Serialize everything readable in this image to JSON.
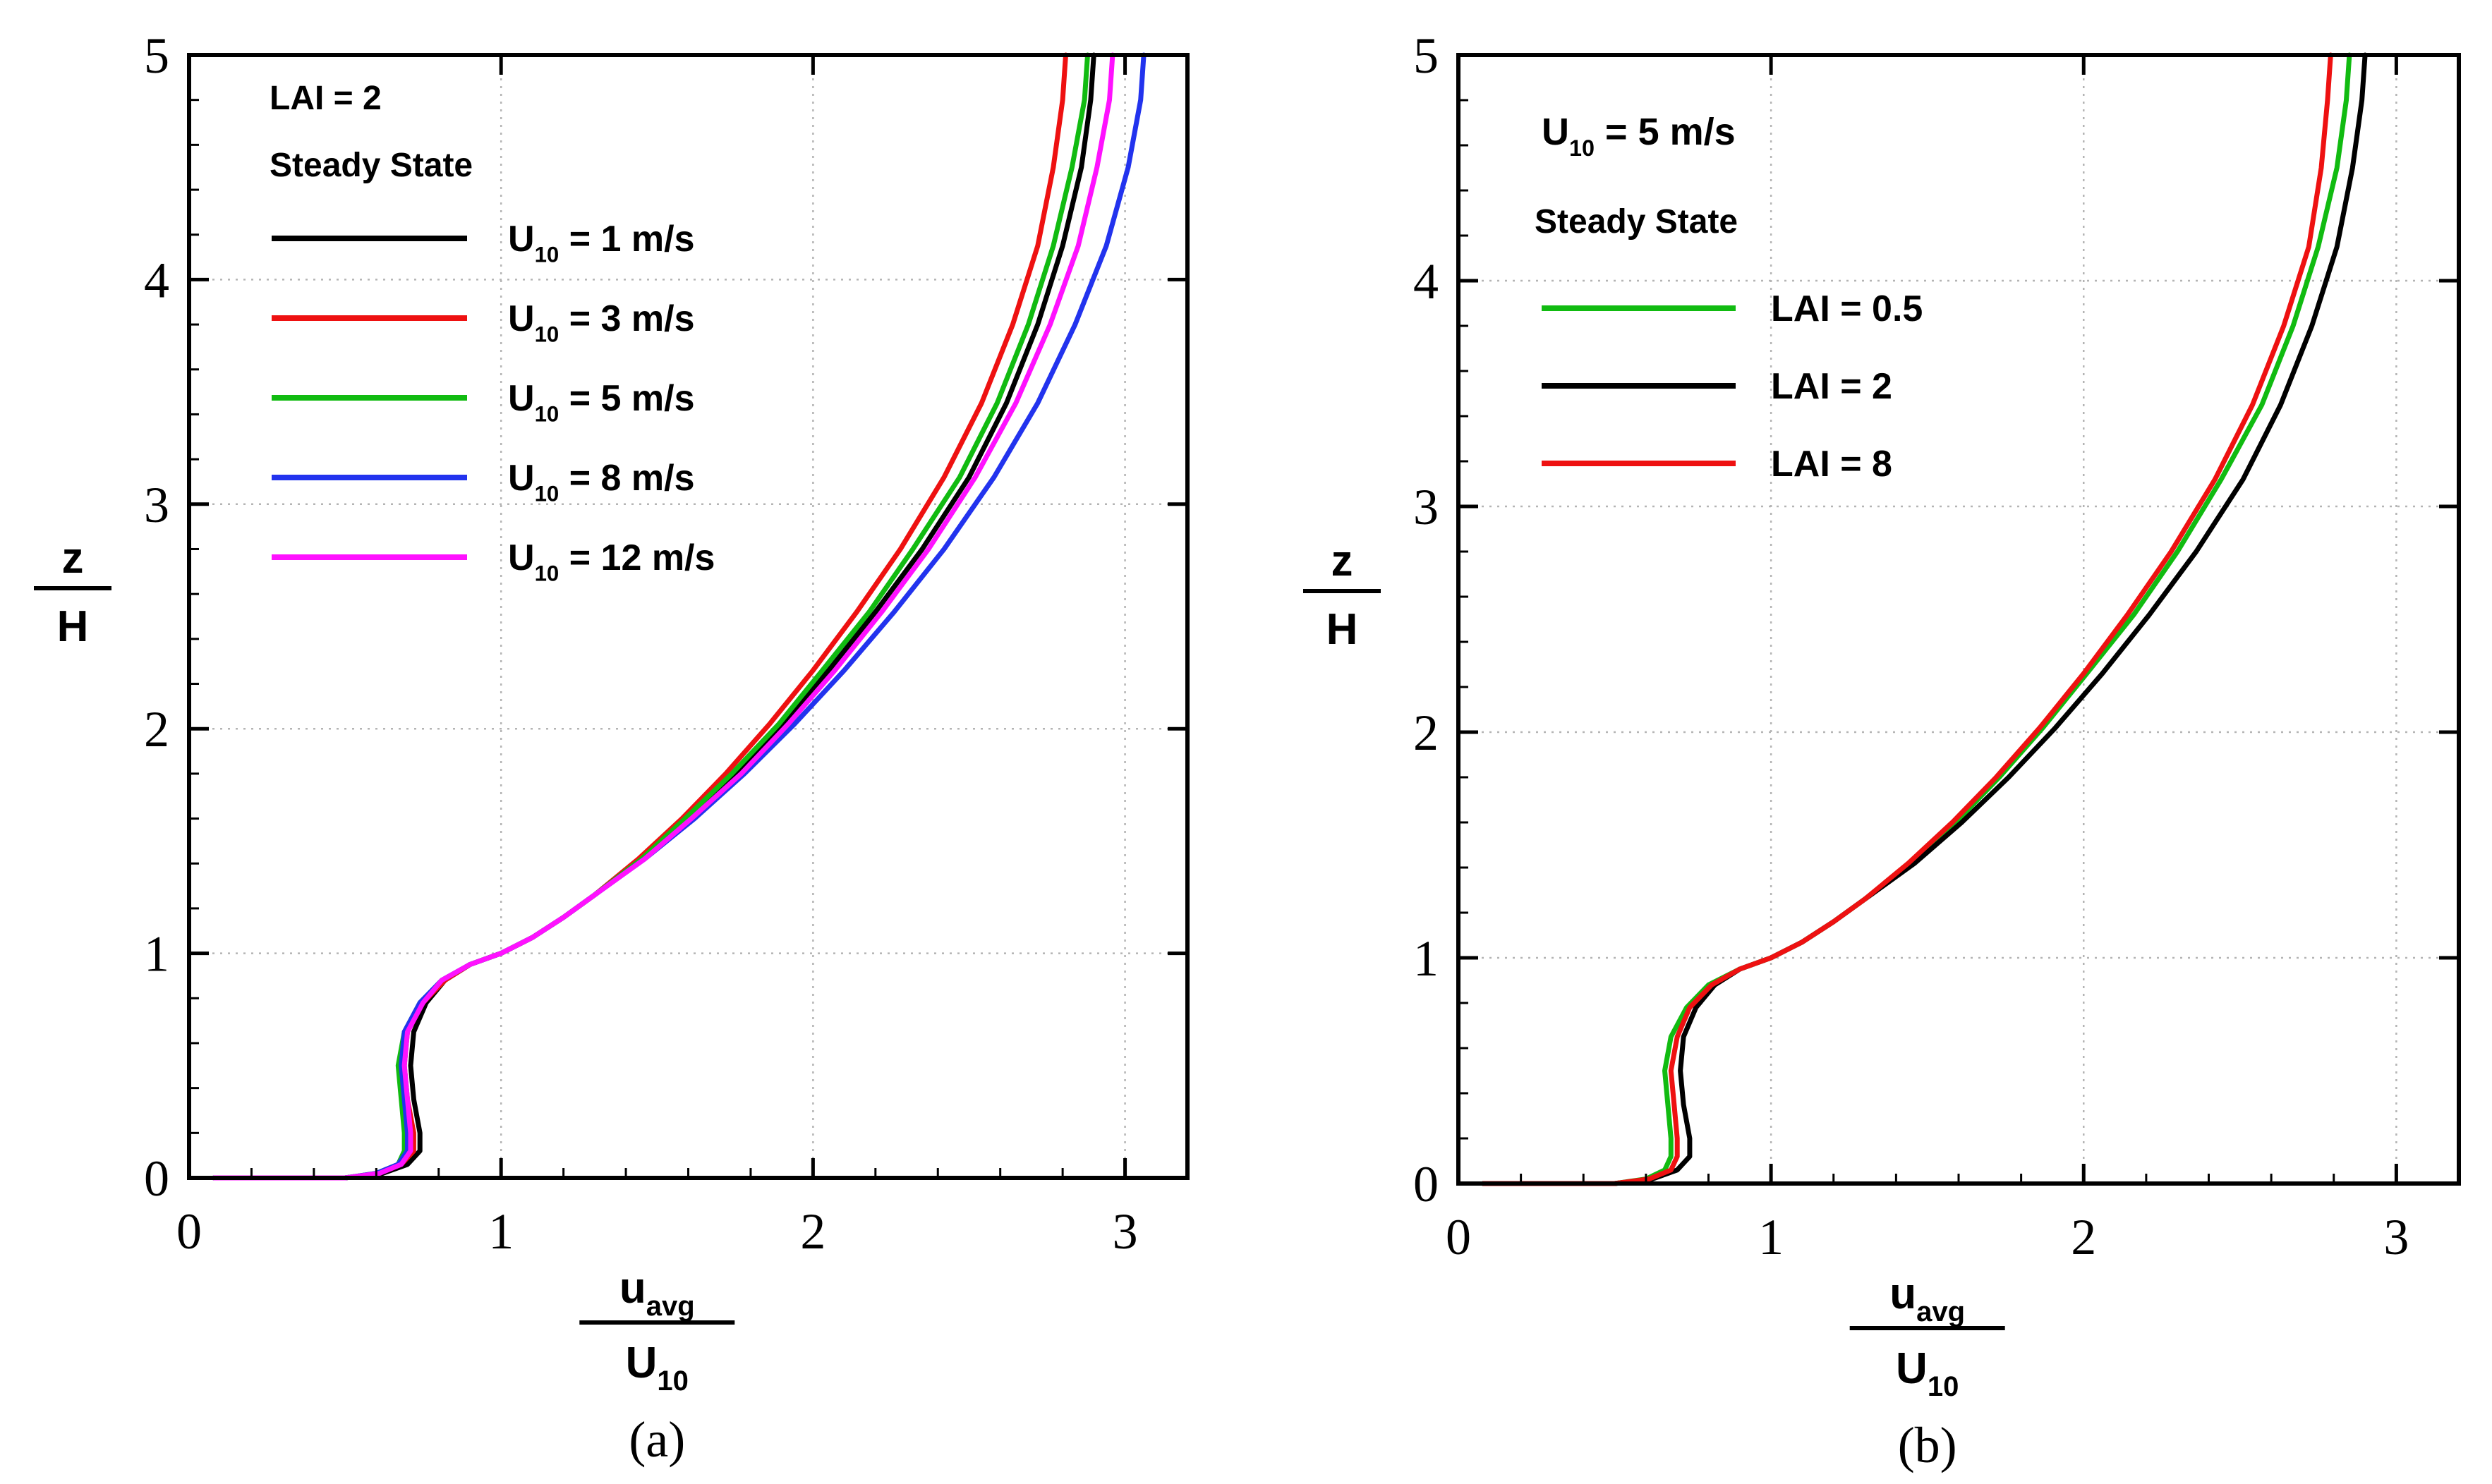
{
  "chart_data": [
    {
      "type": "line",
      "panel": "(a)",
      "xlim": [
        0,
        3.2
      ],
      "ylim": [
        0,
        5
      ],
      "xticks": [
        "0",
        "1",
        "2",
        "3"
      ],
      "yticks": [
        "0",
        "1",
        "2",
        "3",
        "4",
        "5"
      ],
      "xlabel": {
        "num_main": "u",
        "num_sub": "avg",
        "den_main": "U",
        "den_sub": "10"
      },
      "ylabel": {
        "num": "z",
        "den": "H"
      },
      "grid": true,
      "annotations": [
        "LAI = 2",
        "Steady State"
      ],
      "series": [
        {
          "name": "U10 = 1 m/s",
          "label_main": "U",
          "label_sub": "10",
          "label_rest": " = 1 m/s",
          "color": "#000000",
          "x": [
            0.08,
            0.5,
            0.62,
            0.7,
            0.74,
            0.74,
            0.72,
            0.71,
            0.72,
            0.76,
            0.82,
            0.9,
            1.0,
            1.1,
            1.2,
            1.3,
            1.45,
            1.6,
            1.75,
            1.9,
            2.05,
            2.2,
            2.35,
            2.5,
            2.62,
            2.72,
            2.8,
            2.86,
            2.89,
            2.9
          ],
          "y": [
            0,
            0,
            0.02,
            0.06,
            0.12,
            0.2,
            0.35,
            0.5,
            0.65,
            0.78,
            0.88,
            0.95,
            1.0,
            1.07,
            1.16,
            1.26,
            1.42,
            1.6,
            1.8,
            2.02,
            2.26,
            2.52,
            2.8,
            3.12,
            3.45,
            3.8,
            4.15,
            4.5,
            4.8,
            5.0
          ]
        },
        {
          "name": "U10 = 3 m/s",
          "label_main": "U",
          "label_sub": "10",
          "label_rest": " = 3 m/s",
          "color": "#ee1111",
          "x": [
            0.08,
            0.5,
            0.61,
            0.68,
            0.72,
            0.72,
            0.7,
            0.69,
            0.7,
            0.75,
            0.82,
            0.9,
            1.0,
            1.1,
            1.2,
            1.3,
            1.44,
            1.58,
            1.72,
            1.86,
            2.0,
            2.14,
            2.28,
            2.42,
            2.54,
            2.64,
            2.72,
            2.77,
            2.8,
            2.81
          ],
          "y": [
            0,
            0,
            0.02,
            0.06,
            0.12,
            0.2,
            0.35,
            0.5,
            0.65,
            0.78,
            0.88,
            0.95,
            1.0,
            1.07,
            1.16,
            1.26,
            1.42,
            1.6,
            1.8,
            2.02,
            2.26,
            2.52,
            2.8,
            3.12,
            3.45,
            3.8,
            4.15,
            4.5,
            4.8,
            5.0
          ]
        },
        {
          "name": "U10 = 5 m/s",
          "label_main": "U",
          "label_sub": "10",
          "label_rest": " = 5 m/s",
          "color": "#11bb11",
          "x": [
            0.08,
            0.5,
            0.6,
            0.67,
            0.69,
            0.69,
            0.68,
            0.67,
            0.69,
            0.74,
            0.81,
            0.9,
            1.0,
            1.1,
            1.2,
            1.3,
            1.45,
            1.59,
            1.74,
            1.89,
            2.03,
            2.18,
            2.32,
            2.47,
            2.59,
            2.69,
            2.77,
            2.83,
            2.87,
            2.88
          ],
          "y": [
            0,
            0,
            0.02,
            0.06,
            0.12,
            0.2,
            0.35,
            0.5,
            0.65,
            0.78,
            0.88,
            0.95,
            1.0,
            1.07,
            1.16,
            1.26,
            1.42,
            1.6,
            1.8,
            2.02,
            2.26,
            2.52,
            2.8,
            3.12,
            3.45,
            3.8,
            4.15,
            4.5,
            4.8,
            5.0
          ]
        },
        {
          "name": "U10 = 8 m/s",
          "label_main": "U",
          "label_sub": "10",
          "label_rest": " = 8 m/s",
          "color": "#2233ee",
          "x": [
            0.08,
            0.5,
            0.6,
            0.67,
            0.7,
            0.7,
            0.69,
            0.68,
            0.69,
            0.74,
            0.81,
            0.9,
            1.0,
            1.1,
            1.2,
            1.3,
            1.46,
            1.62,
            1.78,
            1.94,
            2.1,
            2.26,
            2.42,
            2.58,
            2.72,
            2.84,
            2.94,
            3.01,
            3.05,
            3.06
          ],
          "y": [
            0,
            0,
            0.02,
            0.06,
            0.12,
            0.2,
            0.35,
            0.5,
            0.65,
            0.78,
            0.88,
            0.95,
            1.0,
            1.07,
            1.16,
            1.26,
            1.42,
            1.6,
            1.8,
            2.02,
            2.26,
            2.52,
            2.8,
            3.12,
            3.45,
            3.8,
            4.15,
            4.5,
            4.8,
            5.0
          ]
        },
        {
          "name": "U10 = 12 m/s",
          "label_main": "U",
          "label_sub": "10",
          "label_rest": " = 12 m/s",
          "color": "#ff11ff",
          "x": [
            0.08,
            0.5,
            0.61,
            0.68,
            0.71,
            0.71,
            0.7,
            0.69,
            0.7,
            0.75,
            0.81,
            0.9,
            1.0,
            1.1,
            1.2,
            1.3,
            1.46,
            1.61,
            1.77,
            1.92,
            2.07,
            2.22,
            2.37,
            2.52,
            2.65,
            2.76,
            2.85,
            2.91,
            2.95,
            2.96
          ],
          "y": [
            0,
            0,
            0.02,
            0.06,
            0.12,
            0.2,
            0.35,
            0.5,
            0.65,
            0.78,
            0.88,
            0.95,
            1.0,
            1.07,
            1.16,
            1.26,
            1.42,
            1.6,
            1.8,
            2.02,
            2.26,
            2.52,
            2.8,
            3.12,
            3.45,
            3.8,
            4.15,
            4.5,
            4.8,
            5.0
          ]
        }
      ]
    },
    {
      "type": "line",
      "panel": "(b)",
      "xlim": [
        0,
        3.2
      ],
      "ylim": [
        0,
        5
      ],
      "xticks": [
        "0",
        "1",
        "2",
        "3"
      ],
      "yticks": [
        "0",
        "1",
        "2",
        "3",
        "4",
        "5"
      ],
      "xlabel": {
        "num_main": "u",
        "num_sub": "avg",
        "den_main": "U",
        "den_sub": "10"
      },
      "ylabel": {
        "num": "z",
        "den": "H"
      },
      "grid": true,
      "annotations": [
        "Steady State"
      ],
      "title_main": "U",
      "title_sub": "10",
      "title_rest": " = 5 m/s",
      "series": [
        {
          "name": "LAI = 0.5",
          "label_main": "LAI = 0.5",
          "label_sub": "",
          "label_rest": "",
          "color": "#11bb11",
          "x": [
            0.08,
            0.5,
            0.6,
            0.66,
            0.68,
            0.68,
            0.67,
            0.66,
            0.68,
            0.73,
            0.8,
            0.9,
            1.0,
            1.1,
            1.2,
            1.3,
            1.45,
            1.59,
            1.73,
            1.87,
            2.01,
            2.16,
            2.3,
            2.44,
            2.57,
            2.67,
            2.75,
            2.81,
            2.84,
            2.85
          ],
          "y": [
            0,
            0,
            0.02,
            0.06,
            0.12,
            0.2,
            0.35,
            0.5,
            0.65,
            0.78,
            0.88,
            0.95,
            1.0,
            1.07,
            1.16,
            1.26,
            1.42,
            1.6,
            1.8,
            2.02,
            2.26,
            2.52,
            2.8,
            3.12,
            3.45,
            3.8,
            4.15,
            4.5,
            4.8,
            5.0
          ]
        },
        {
          "name": "LAI = 2",
          "label_main": "LAI = 2",
          "label_sub": "",
          "label_rest": "",
          "color": "#000000",
          "x": [
            0.08,
            0.5,
            0.62,
            0.7,
            0.74,
            0.74,
            0.72,
            0.71,
            0.72,
            0.76,
            0.82,
            0.9,
            1.0,
            1.1,
            1.2,
            1.3,
            1.46,
            1.61,
            1.76,
            1.91,
            2.06,
            2.21,
            2.36,
            2.51,
            2.63,
            2.73,
            2.81,
            2.86,
            2.89,
            2.9
          ],
          "y": [
            0,
            0,
            0.02,
            0.06,
            0.12,
            0.2,
            0.35,
            0.5,
            0.65,
            0.78,
            0.88,
            0.95,
            1.0,
            1.07,
            1.16,
            1.26,
            1.42,
            1.6,
            1.8,
            2.02,
            2.26,
            2.52,
            2.8,
            3.12,
            3.45,
            3.8,
            4.15,
            4.5,
            4.8,
            5.0
          ]
        },
        {
          "name": "LAI = 8",
          "label_main": "LAI = 8",
          "label_sub": "",
          "label_rest": "",
          "color": "#ee1111",
          "x": [
            0.08,
            0.5,
            0.61,
            0.68,
            0.7,
            0.7,
            0.69,
            0.68,
            0.7,
            0.74,
            0.81,
            0.9,
            1.0,
            1.1,
            1.2,
            1.3,
            1.44,
            1.58,
            1.72,
            1.86,
            2.0,
            2.14,
            2.28,
            2.42,
            2.54,
            2.64,
            2.72,
            2.76,
            2.78,
            2.79
          ],
          "y": [
            0,
            0,
            0.02,
            0.06,
            0.12,
            0.2,
            0.35,
            0.5,
            0.65,
            0.78,
            0.88,
            0.95,
            1.0,
            1.07,
            1.16,
            1.26,
            1.42,
            1.6,
            1.8,
            2.02,
            2.26,
            2.52,
            2.8,
            3.12,
            3.45,
            3.8,
            4.15,
            4.5,
            4.8,
            5.0
          ]
        }
      ]
    }
  ]
}
